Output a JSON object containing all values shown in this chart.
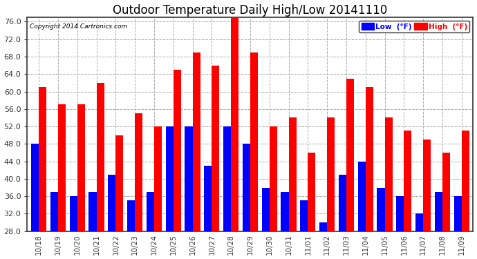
{
  "title": "Outdoor Temperature Daily High/Low 20141110",
  "copyright": "Copyright 2014 Cartronics.com",
  "legend_low": "Low  (°F)",
  "legend_high": "High  (°F)",
  "ylim": [
    28.0,
    77.0
  ],
  "yticks": [
    28.0,
    32.0,
    36.0,
    40.0,
    44.0,
    48.0,
    52.0,
    56.0,
    60.0,
    64.0,
    68.0,
    72.0,
    76.0
  ],
  "background_color": "#ffffff",
  "plot_bg_color": "#ffffff",
  "grid_color": "#aaaaaa",
  "low_color": "#0000ff",
  "high_color": "#ff0000",
  "border_color": "#333333",
  "dates": [
    "10/18",
    "10/19",
    "10/20",
    "10/21",
    "10/22",
    "10/23",
    "10/24",
    "10/25",
    "10/26",
    "10/27",
    "10/28",
    "10/29",
    "10/30",
    "10/31",
    "11/01",
    "11/02",
    "11/03",
    "11/04",
    "11/05",
    "11/06",
    "11/07",
    "11/08",
    "11/09"
  ],
  "highs": [
    61,
    57,
    57,
    62,
    50,
    55,
    52,
    65,
    69,
    66,
    77,
    69,
    52,
    54,
    46,
    54,
    63,
    61,
    54,
    51,
    49,
    46,
    51
  ],
  "lows": [
    48,
    37,
    36,
    37,
    41,
    35,
    37,
    52,
    52,
    43,
    52,
    48,
    38,
    37,
    35,
    30,
    41,
    44,
    38,
    36,
    32,
    37,
    36
  ],
  "bar_bottom": 28.0
}
